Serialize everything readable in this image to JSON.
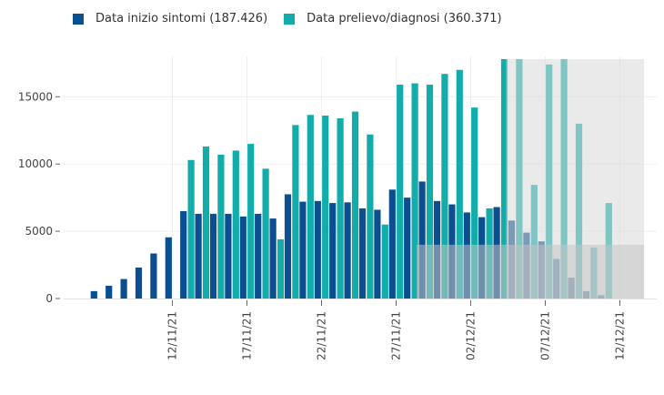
{
  "legend": {
    "items": [
      {
        "label": "Data inizio sintomi (187.426)",
        "color": "#0b4f91"
      },
      {
        "label": "Data prelievo/diagnosi (360.371)",
        "color": "#12adab"
      }
    ]
  },
  "chart_data": {
    "type": "bar",
    "x_axis": {
      "type": "date",
      "tick_labels": [
        "12/11/21",
        "17/11/21",
        "22/11/21",
        "27/11/21",
        "02/12/21",
        "07/12/21",
        "12/12/21"
      ]
    },
    "y_axis": {
      "range": [
        0,
        18000
      ],
      "tick_values": [
        0,
        5000,
        10000,
        15000
      ],
      "tick_labels": [
        "0",
        "5000",
        "10000",
        "15000"
      ]
    },
    "grid": true,
    "legend_position": "top-left",
    "series": [
      {
        "name": "Data inizio sintomi (187.426)",
        "color": "#0b4f91",
        "x": [
          "07/11/21",
          "08/11/21",
          "09/11/21",
          "10/11/21",
          "11/11/21",
          "12/11/21",
          "13/11/21",
          "14/11/21",
          "15/11/21",
          "16/11/21",
          "17/11/21",
          "18/11/21",
          "19/11/21",
          "20/11/21",
          "21/11/21",
          "22/11/21",
          "23/11/21",
          "24/11/21",
          "25/11/21",
          "26/11/21",
          "27/11/21",
          "28/11/21",
          "29/11/21",
          "30/11/21",
          "01/12/21",
          "02/12/21",
          "03/12/21",
          "04/12/21",
          "05/12/21",
          "06/12/21",
          "07/12/21",
          "08/12/21",
          "09/12/21",
          "10/12/21",
          "11/12/21",
          "12/12/21",
          "13/12/21"
        ],
        "values": [
          550,
          950,
          1450,
          2300,
          3350,
          4550,
          6500,
          6300,
          6300,
          6300,
          6100,
          6300,
          5950,
          7750,
          7200,
          7250,
          7100,
          7150,
          6700,
          6600,
          8100,
          7500,
          8700,
          7250,
          7000,
          6400,
          6050,
          6800,
          5800,
          4900,
          4250,
          2950,
          1550,
          550,
          250,
          0,
          0
        ]
      },
      {
        "name": "Data prelievo/diagnosi (360.371)",
        "color": "#12adab",
        "x": [
          "07/11/21",
          "08/11/21",
          "09/11/21",
          "10/11/21",
          "11/11/21",
          "12/11/21",
          "13/11/21",
          "14/11/21",
          "15/11/21",
          "16/11/21",
          "17/11/21",
          "18/11/21",
          "19/11/21",
          "20/11/21",
          "21/11/21",
          "22/11/21",
          "23/11/21",
          "24/11/21",
          "25/11/21",
          "26/11/21",
          "27/11/21",
          "28/11/21",
          "29/11/21",
          "30/11/21",
          "01/12/21",
          "02/12/21",
          "03/12/21",
          "04/12/21",
          "05/12/21",
          "06/12/21",
          "07/12/21",
          "08/12/21",
          "09/12/21",
          "10/12/21",
          "11/12/21",
          "12/12/21",
          "13/12/21"
        ],
        "values": [
          0,
          0,
          0,
          0,
          0,
          0,
          10300,
          11300,
          10700,
          11000,
          11500,
          9650,
          4400,
          12900,
          13650,
          13600,
          13400,
          13900,
          12200,
          5500,
          15900,
          16000,
          15900,
          16700,
          17000,
          14200,
          6700,
          17800,
          17800,
          8450,
          17400,
          17800,
          13000,
          3800,
          7100,
          0,
          0
        ]
      }
    ],
    "shaded_regions": [
      {
        "x_start": "05/12/21",
        "x_end": "13/12/21",
        "y_start": 0,
        "y_end": 17800,
        "color": "#d9d9d9"
      },
      {
        "x_start": "29/11/21",
        "x_end": "13/12/21",
        "y_start": 0,
        "y_end": 4000,
        "color": "#c4c4c4"
      }
    ]
  }
}
